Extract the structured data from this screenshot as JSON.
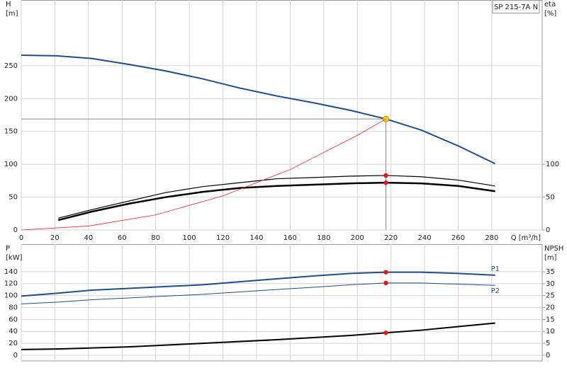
{
  "chart_data": [
    {
      "type": "line",
      "title": "SP 215-7A N",
      "ylabel": [
        "H",
        "[m]"
      ],
      "y2label": [
        "eta",
        "[%]"
      ],
      "xlabel": "Q [m³/h]",
      "xlim": [
        0,
        310
      ],
      "xticks": [
        0,
        20,
        40,
        60,
        80,
        100,
        120,
        140,
        160,
        180,
        200,
        220,
        240,
        260,
        280
      ],
      "ylim": [
        0,
        350
      ],
      "yticks": [
        0,
        50,
        100,
        150,
        200,
        250
      ],
      "y2lim": [
        0,
        350
      ],
      "y2ticks": [
        0,
        50,
        100
      ],
      "show_xtick_labels": true,
      "grid": true,
      "series": [
        {
          "color": "#1f4e8c",
          "width": 2,
          "x": [
            0,
            21,
            42,
            64,
            86,
            108,
            130,
            152,
            175,
            196,
            217,
            238,
            260,
            282
          ],
          "values": [
            266,
            265,
            261,
            252,
            242,
            230,
            216,
            204,
            193,
            182,
            169,
            152,
            128,
            101
          ],
          "highlight": 10,
          "highlight_color": "#ffd700",
          "guide": true
        },
        {
          "color": "#000000",
          "width": 1.2,
          "axis": "y2",
          "x": [
            22,
            42,
            64,
            86,
            108,
            130,
            152,
            175,
            196,
            217,
            238,
            260,
            282
          ],
          "values": [
            18,
            31,
            44,
            57,
            66,
            72,
            78,
            80,
            82,
            83,
            81,
            76,
            67
          ],
          "highlight": 9,
          "highlight_color": "#e8141b"
        },
        {
          "color": "#000000",
          "width": 2.5,
          "axis": "y2",
          "x": [
            22,
            42,
            64,
            86,
            108,
            130,
            152,
            175,
            196,
            217,
            238,
            260,
            282
          ],
          "values": [
            15,
            28,
            40,
            50,
            58,
            64,
            67,
            69,
            71,
            72,
            71,
            67,
            59
          ],
          "highlight": 9,
          "highlight_color": "#e8141b"
        },
        {
          "color": "#ff2020",
          "width": 0.8,
          "x": [
            0,
            40,
            80,
            120,
            160,
            200,
            217
          ],
          "values": [
            0,
            6,
            23,
            52,
            92,
            144,
            169
          ]
        }
      ]
    },
    {
      "type": "line",
      "ylabel": [
        "P",
        "[kW]"
      ],
      "y2label": [
        "NPSH",
        "[m]"
      ],
      "xlim": [
        0,
        310
      ],
      "xticks": [
        0,
        20,
        40,
        60,
        80,
        100,
        120,
        140,
        160,
        180,
        200,
        220,
        240,
        260,
        280
      ],
      "ylim": [
        -9.5,
        186
      ],
      "yticks": [
        0,
        20,
        40,
        60,
        80,
        100,
        120,
        140
      ],
      "y2lim": [
        -2.4,
        46.6
      ],
      "y2ticks": [
        0,
        5,
        10,
        15,
        20,
        25,
        30,
        35
      ],
      "show_xtick_labels": false,
      "grid": true,
      "series": [
        {
          "name": "P1",
          "color": "#1f4e8c",
          "width": 2,
          "x": [
            0,
            22,
            42,
            64,
            86,
            108,
            130,
            152,
            175,
            196,
            217,
            238,
            260,
            282
          ],
          "values": [
            99,
            104,
            109,
            112,
            115,
            118,
            123,
            128,
            133,
            137,
            139,
            139,
            137,
            134
          ],
          "highlight": 10,
          "highlight_color": "#e8141b"
        },
        {
          "name": "P2",
          "color": "#1f4e8c",
          "width": 1,
          "x": [
            0,
            22,
            42,
            64,
            86,
            108,
            130,
            152,
            175,
            196,
            217,
            238,
            260,
            282
          ],
          "values": [
            86,
            89,
            93,
            96,
            99,
            102,
            106,
            110,
            114,
            118,
            121,
            121,
            119,
            117
          ],
          "highlight": 10,
          "highlight_color": "#e8141b"
        },
        {
          "color": "#000000",
          "width": 2,
          "axis": "y2",
          "x": [
            0,
            22,
            64,
            108,
            152,
            196,
            217,
            238,
            260,
            282
          ],
          "values": [
            2.4,
            2.6,
            3.5,
            5,
            6.5,
            8.3,
            9.4,
            10.5,
            12,
            13.5
          ],
          "highlight": 6,
          "highlight_color": "#e8141b"
        }
      ]
    }
  ]
}
